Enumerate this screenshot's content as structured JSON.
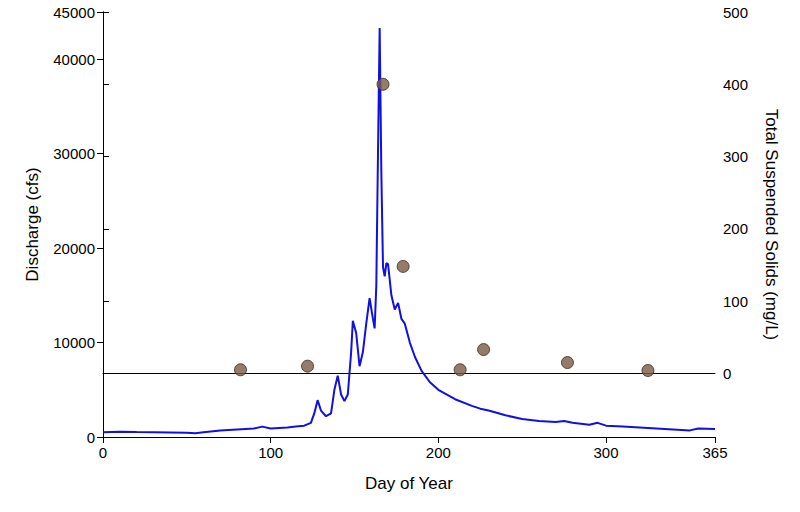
{
  "chart_data": {
    "type": "line",
    "x_label": "Day of Year",
    "y_label": "Discharge (cfs)",
    "y2_label": "Total Suspended Solids (mg/L)",
    "xlim": [
      0,
      365
    ],
    "xticks": [
      0,
      100,
      200,
      300
    ],
    "ylim": [
      0,
      45000
    ],
    "yticks": [
      0,
      10000,
      20000,
      30000,
      40000
    ],
    "y2lim": [
      -88,
      500
    ],
    "y2ticks": [
      0,
      100,
      200,
      300,
      400,
      500
    ],
    "grid": false,
    "series": [
      {
        "type": "line",
        "color": "#1010e0",
        "line_style": "solid",
        "x": [
          0,
          10,
          20,
          30,
          40,
          50,
          55,
          60,
          70,
          80,
          90,
          95,
          100,
          110,
          115,
          120,
          124,
          126,
          128,
          130,
          133,
          136,
          138,
          140,
          142,
          144,
          146,
          148,
          149,
          151,
          153,
          155,
          157,
          159,
          161,
          162,
          163,
          164,
          165,
          166,
          167,
          168,
          169,
          170,
          172,
          174,
          176,
          178,
          180,
          183,
          186,
          190,
          195,
          200,
          210,
          220,
          225,
          230,
          240,
          250,
          260,
          270,
          275,
          280,
          290,
          295,
          300,
          310,
          320,
          330,
          340,
          350,
          355,
          365
        ],
        "values": [
          500,
          550,
          520,
          500,
          480,
          450,
          400,
          500,
          700,
          800,
          900,
          1100,
          900,
          1000,
          1100,
          1200,
          1500,
          2500,
          3900,
          2800,
          2200,
          2500,
          5000,
          6500,
          4500,
          3800,
          4500,
          9000,
          12300,
          11000,
          7500,
          9000,
          12000,
          14700,
          12500,
          11500,
          16000,
          30000,
          43300,
          28000,
          18000,
          17000,
          18400,
          18300,
          15000,
          13500,
          14200,
          12500,
          12000,
          10000,
          8500,
          7000,
          5800,
          5000,
          4000,
          3300,
          3000,
          2800,
          2300,
          1900,
          1700,
          1600,
          1700,
          1500,
          1300,
          1500,
          1200,
          1100,
          1000,
          900,
          800,
          700,
          900,
          850
        ]
      },
      {
        "type": "scatter",
        "axis": "y2",
        "color": "#7b5a44",
        "marker": "circle",
        "x": [
          82,
          122,
          167,
          179,
          213,
          227,
          277,
          325
        ],
        "values": [
          5,
          10,
          400,
          148,
          5,
          33,
          15,
          4
        ]
      }
    ]
  }
}
